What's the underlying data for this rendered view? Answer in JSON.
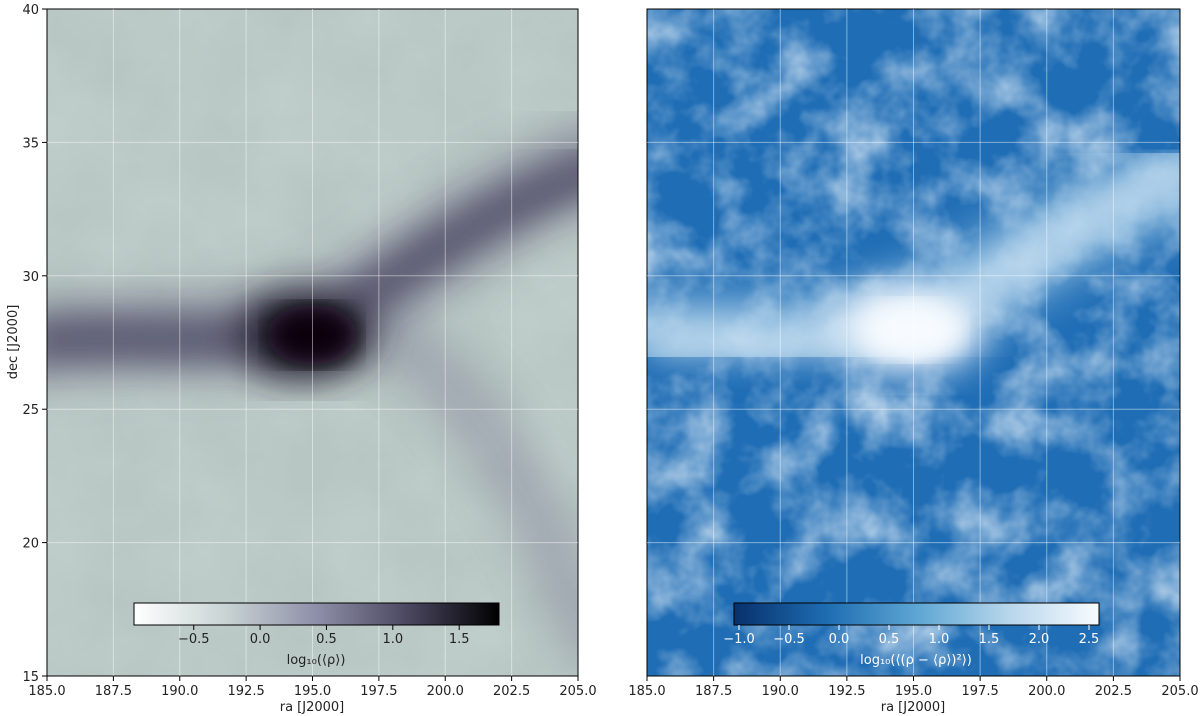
{
  "chart_data": [
    {
      "type": "heatmap",
      "title": "",
      "xlabel": "ra [J2000]",
      "ylabel": "dec [J2000]",
      "xlim": [
        185.0,
        205.0
      ],
      "ylim": [
        15,
        40
      ],
      "xticks": [
        "185.0",
        "187.5",
        "190.0",
        "192.5",
        "195.0",
        "197.5",
        "200.0",
        "202.5",
        "205.0"
      ],
      "yticks": [
        "15",
        "20",
        "25",
        "30",
        "35",
        "40"
      ],
      "grid": true,
      "colormap": "bone_r",
      "colorbar": {
        "label": "log₁₀(⟨ρ⟩)",
        "range": [
          -0.95,
          1.8
        ],
        "ticks": [
          "−0.5",
          "0.0",
          "0.5",
          "1.0",
          "1.5"
        ],
        "placement": "bottom, inside plot"
      },
      "features": [
        {
          "kind": "peak",
          "ra": 195.0,
          "dec": 27.7,
          "value": 1.8
        },
        {
          "kind": "filament",
          "from": [
            185.0,
            27.0
          ],
          "to": [
            205.0,
            34.0
          ]
        },
        {
          "kind": "filament",
          "from": [
            195.0,
            28.0
          ],
          "to": [
            201.0,
            21.0
          ]
        }
      ]
    },
    {
      "type": "heatmap",
      "title": "",
      "xlabel": "ra [J2000]",
      "ylabel": "",
      "xlim": [
        185.0,
        205.0
      ],
      "ylim": [
        15,
        40
      ],
      "xticks": [
        "185.0",
        "187.5",
        "190.0",
        "192.5",
        "195.0",
        "197.5",
        "200.0",
        "202.5",
        "205.0"
      ],
      "yticks": [],
      "grid": true,
      "colormap": "Blues_r",
      "colorbar": {
        "label": "log₁₀(⟨(ρ − ⟨ρ⟩)²⟩)",
        "range": [
          -1.05,
          2.6
        ],
        "ticks": [
          "−1.0",
          "−0.5",
          "0.0",
          "0.5",
          "1.0",
          "1.5",
          "2.0",
          "2.5"
        ],
        "placement": "bottom, inside plot"
      },
      "features": [
        {
          "kind": "peak",
          "ra": 194.5,
          "dec": 28.0,
          "value": 2.6
        },
        {
          "kind": "filament",
          "from": [
            185.0,
            27.0
          ],
          "to": [
            205.0,
            34.0
          ]
        }
      ]
    }
  ]
}
